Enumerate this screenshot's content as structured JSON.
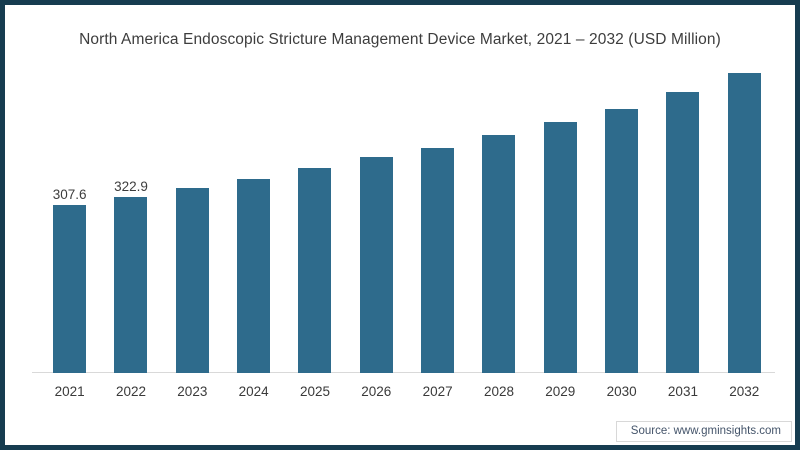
{
  "colors": {
    "bar": "#2e6b8c",
    "frame": "#163c50",
    "axis": "#d9d9d9",
    "title_text": "#3d3d3d",
    "source_text": "#44546a"
  },
  "source": {
    "label": "Source: www.gminsights.com"
  },
  "chart_data": {
    "type": "bar",
    "title": "North America Endoscopic Stricture Management Device Market, 2021 – 2032 (USD Million)",
    "categories": [
      "2021",
      "2022",
      "2023",
      "2024",
      "2025",
      "2026",
      "2027",
      "2028",
      "2029",
      "2030",
      "2031",
      "2032"
    ],
    "values": [
      307.6,
      322.9,
      339,
      356,
      375,
      396,
      413,
      435,
      460,
      484,
      515,
      549
    ],
    "data_labels": [
      "307.6",
      "322.9",
      "",
      "",
      "",
      "",
      "",
      "",
      "",
      "",
      "",
      ""
    ],
    "values_estimated_beyond_2022": true,
    "xlabel": "",
    "ylabel": "USD Million",
    "ylim": [
      0,
      560
    ],
    "grid": false,
    "legend": false,
    "legend_position": "none",
    "bar_color": "#2e6b8c"
  }
}
